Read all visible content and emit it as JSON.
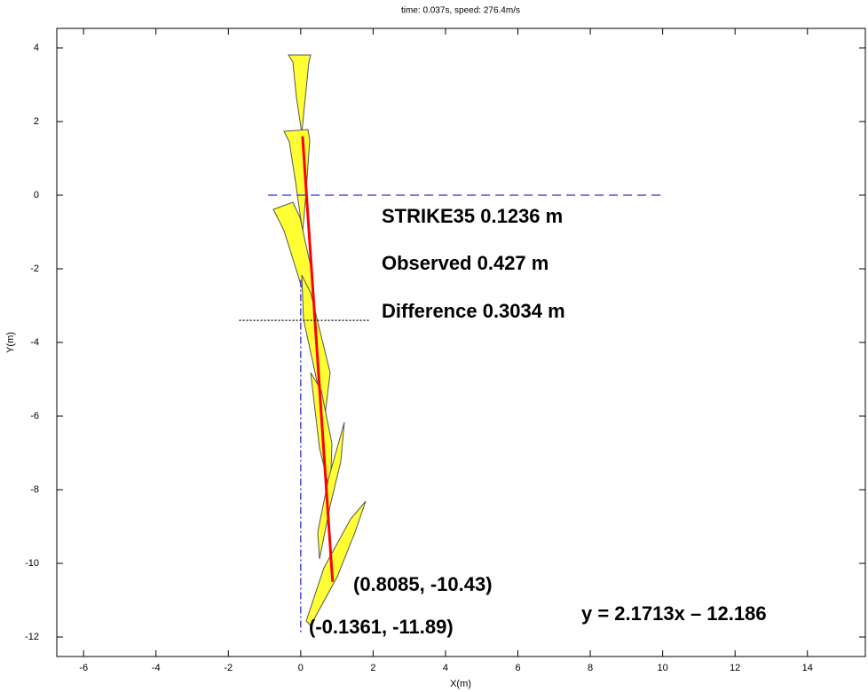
{
  "chart_data": {
    "type": "line",
    "title": "time:  0.037s,  speed:  276.4m/s",
    "xlabel": "X(m)",
    "ylabel": "Y(m)",
    "xlim": [
      -6.74,
      15.6
    ],
    "ylim": [
      -12.53,
      4.53
    ],
    "xticks": [
      -6,
      -4,
      -2,
      0,
      2,
      4,
      6,
      8,
      10,
      12,
      14
    ],
    "yticks": [
      -12,
      -10,
      -8,
      -6,
      -4,
      -2,
      0,
      2,
      4
    ],
    "series": [
      {
        "color": "#ff0000",
        "linestyle": "solid",
        "x": [
          0.05,
          0.88
        ],
        "values": [
          1.6,
          -10.5
        ]
      },
      {
        "color": "#2b2bd6",
        "linestyle": "dashed",
        "x": [
          -0.9,
          10
        ],
        "values": [
          0,
          0
        ]
      },
      {
        "color": "#000000",
        "linestyle": "dotted",
        "x": [
          -1.7,
          1.9
        ],
        "values": [
          -3.4,
          -3.4
        ]
      },
      {
        "color": "#2b2bd6",
        "linestyle": "dashdot",
        "x": [
          0,
          0
        ],
        "values": [
          -2.3,
          -11.9
        ]
      }
    ],
    "annotations": [
      "STRIKE35 0.1236 m",
      "Observed 0.427 m",
      "Difference 0.3034 m",
      "(0.8085, -10.43)",
      "(-0.1361, -11.89)",
      "y = 2.1713x – 12.186"
    ]
  }
}
